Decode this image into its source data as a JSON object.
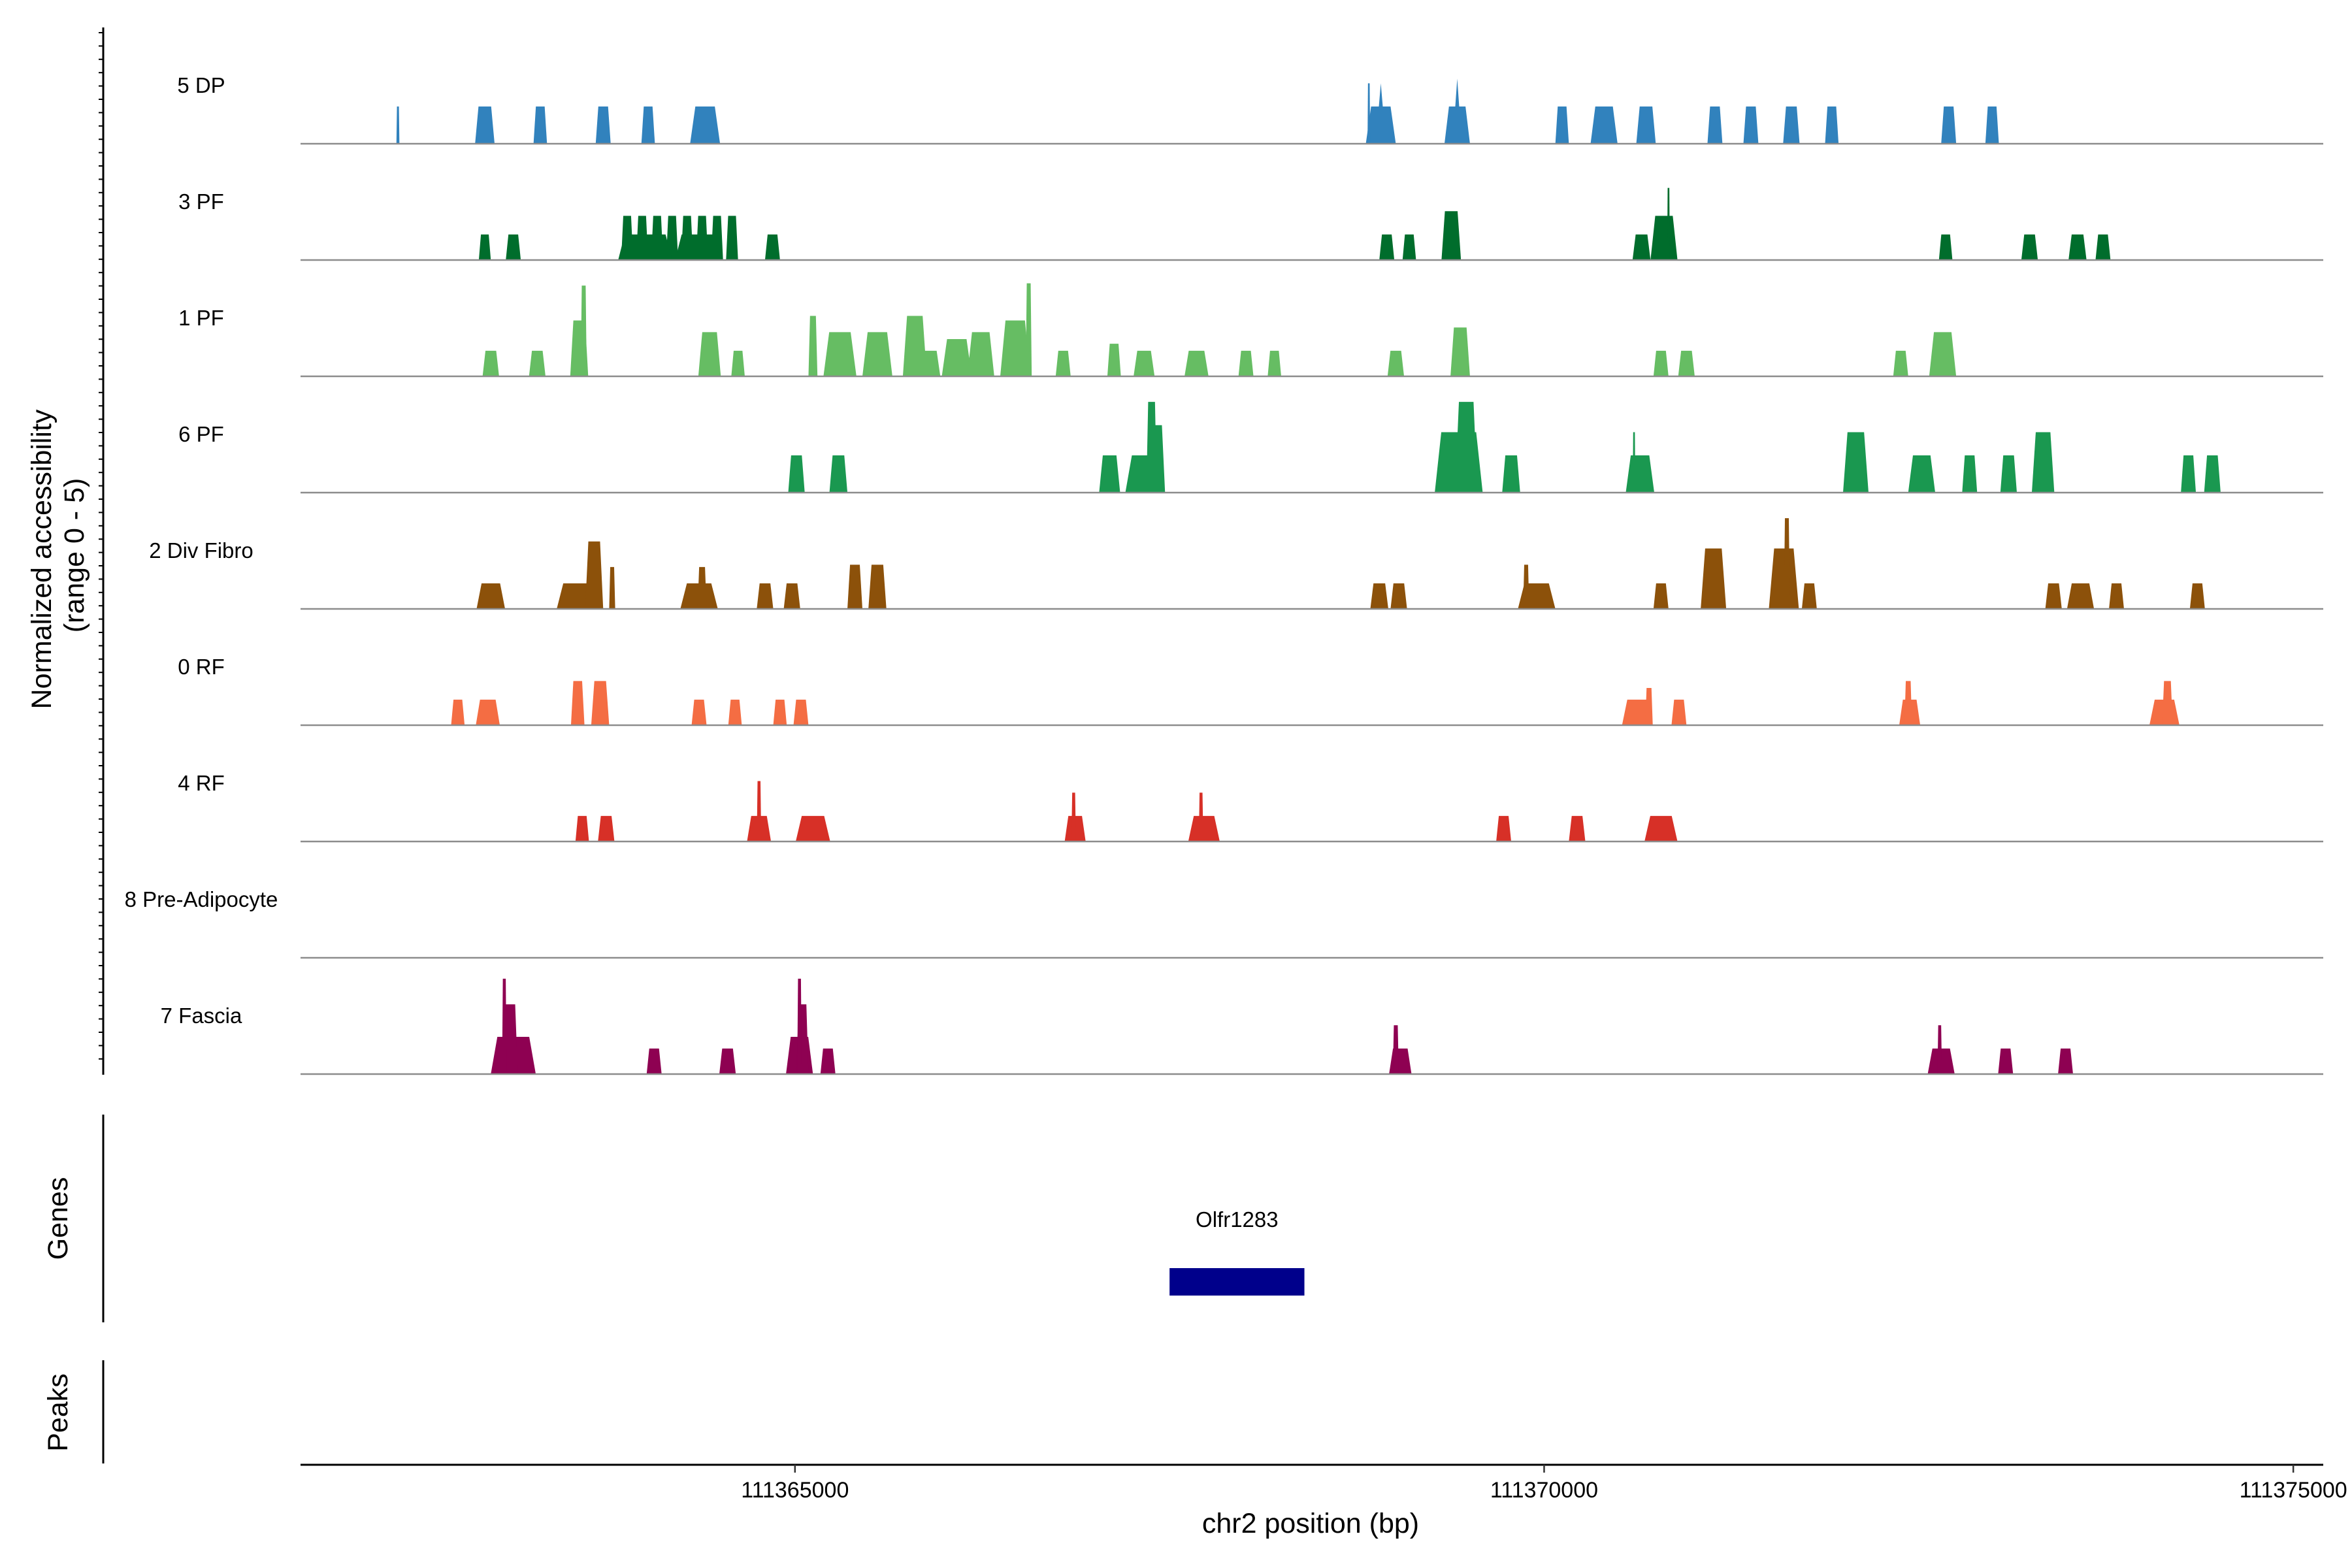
{
  "chart_data": {
    "type": "area",
    "title": "",
    "ylabel": "Normalized accessibility\n(range 0 - 5)",
    "xlabel": "chr2 position (bp)",
    "xlim": [
      111361700,
      111375200
    ],
    "ylim": [
      0,
      5
    ],
    "x_ticks": [
      111365000,
      111370000,
      111375000
    ],
    "x_tick_labels": [
      "111365000",
      "111370000",
      "111375000"
    ],
    "tracks": [
      {
        "name": "5 DP",
        "color": "#3182bd",
        "peaks": [
          [
            111362350,
            20,
            1.6
          ],
          [
            111362930,
            130,
            1.6
          ],
          [
            111363300,
            90,
            1.6
          ],
          [
            111363720,
            100,
            1.6
          ],
          [
            111364020,
            90,
            1.6
          ],
          [
            111364400,
            200,
            1.6
          ],
          [
            111368910,
            200,
            1.6,
            2.6
          ],
          [
            111368830,
            10,
            2.6
          ],
          [
            111370120,
            90,
            1.6
          ],
          [
            111370400,
            180,
            1.6
          ],
          [
            111370680,
            130,
            1.6
          ],
          [
            111371140,
            100,
            1.6
          ],
          [
            111371380,
            100,
            1.6
          ],
          [
            111371650,
            110,
            1.6
          ],
          [
            111371920,
            90,
            1.6
          ],
          [
            111372700,
            100,
            1.6
          ],
          [
            111372990,
            90,
            1.6
          ],
          [
            111369420,
            170,
            1.6,
            2.8
          ]
        ]
      },
      {
        "name": "3 PF",
        "color": "#006d2c",
        "peaks": [
          [
            111362930,
            80,
            1.1
          ],
          [
            111363120,
            100,
            1.1
          ],
          [
            111363880,
            80,
            1.9
          ],
          [
            111363980,
            80,
            1.9
          ],
          [
            111364080,
            80,
            1.9
          ],
          [
            111364180,
            80,
            1.9
          ],
          [
            111364280,
            80,
            1.9
          ],
          [
            111364380,
            80,
            1.9
          ],
          [
            111364480,
            80,
            1.9
          ],
          [
            111364580,
            80,
            1.9
          ],
          [
            111364000,
            360,
            1.1
          ],
          [
            111364350,
            300,
            1.1
          ],
          [
            111364850,
            100,
            1.1
          ],
          [
            111368950,
            100,
            1.1
          ],
          [
            111369100,
            90,
            1.1
          ],
          [
            111369380,
            130,
            2.1
          ],
          [
            111370650,
            120,
            1.1
          ],
          [
            111370800,
            180,
            1.9
          ],
          [
            111370830,
            10,
            3.1
          ],
          [
            111372680,
            90,
            1.1
          ],
          [
            111373240,
            110,
            1.1
          ],
          [
            111373560,
            120,
            1.1
          ],
          [
            111373730,
            100,
            1.1
          ]
        ]
      },
      {
        "name": "1 PF",
        "color": "#66bd63",
        "peaks": [
          [
            111362970,
            110,
            1.1
          ],
          [
            111363280,
            110,
            1.1
          ],
          [
            111363560,
            120,
            2.4
          ],
          [
            111363590,
            40,
            3.9
          ],
          [
            111364430,
            150,
            1.9
          ],
          [
            111364620,
            90,
            1.1
          ],
          [
            111365300,
            220,
            1.9
          ],
          [
            111365550,
            200,
            1.9
          ],
          [
            111365120,
            60,
            2.6
          ],
          [
            111365800,
            160,
            2.6
          ],
          [
            111365900,
            140,
            1.1
          ],
          [
            111366080,
            200,
            1.6
          ],
          [
            111366240,
            180,
            1.9
          ],
          [
            111366470,
            200,
            2.4
          ],
          [
            111366560,
            40,
            4.0
          ],
          [
            111366790,
            100,
            1.1
          ],
          [
            111367130,
            90,
            1.4
          ],
          [
            111367330,
            140,
            1.1
          ],
          [
            111367680,
            160,
            1.1
          ],
          [
            111368010,
            100,
            1.1
          ],
          [
            111368200,
            90,
            1.1
          ],
          [
            111369010,
            110,
            1.1
          ],
          [
            111369440,
            130,
            2.1
          ],
          [
            111370780,
            100,
            1.1
          ],
          [
            111370950,
            110,
            1.1
          ],
          [
            111372380,
            100,
            1.1
          ],
          [
            111372660,
            180,
            1.9
          ]
        ]
      },
      {
        "name": "6 PF",
        "color": "#1a9850",
        "peaks": [
          [
            111365010,
            110,
            1.6
          ],
          [
            111365290,
            120,
            1.6
          ],
          [
            111367100,
            140,
            1.6
          ],
          [
            111367330,
            250,
            1.6
          ],
          [
            111367410,
            120,
            2.9
          ],
          [
            111367380,
            70,
            3.9
          ],
          [
            111369430,
            320,
            2.6
          ],
          [
            111369480,
            150,
            3.9
          ],
          [
            111369780,
            120,
            1.6
          ],
          [
            111370640,
            190,
            1.6
          ],
          [
            111370600,
            10,
            2.6
          ],
          [
            111372080,
            170,
            2.6
          ],
          [
            111372520,
            180,
            1.6
          ],
          [
            111372840,
            100,
            1.6
          ],
          [
            111373100,
            110,
            1.6
          ],
          [
            111373330,
            150,
            2.6
          ],
          [
            111374300,
            100,
            1.6
          ],
          [
            111374460,
            110,
            1.6
          ]
        ]
      },
      {
        "name": "2 Div Fibro",
        "color": "#8c510a",
        "peaks": [
          [
            111362970,
            190,
            1.1
          ],
          [
            111363540,
            260,
            1.1
          ],
          [
            111363660,
            120,
            2.9
          ],
          [
            111363780,
            40,
            1.8
          ],
          [
            111364360,
            250,
            1.1
          ],
          [
            111364380,
            60,
            1.8
          ],
          [
            111364800,
            110,
            1.1
          ],
          [
            111364980,
            110,
            1.1
          ],
          [
            111365400,
            100,
            1.9
          ],
          [
            111365550,
            120,
            1.9
          ],
          [
            111368900,
            120,
            1.1
          ],
          [
            111369030,
            110,
            1.1
          ],
          [
            111369950,
            250,
            1.1
          ],
          [
            111369880,
            40,
            1.9
          ],
          [
            111370780,
            100,
            1.1
          ],
          [
            111371130,
            170,
            2.6
          ],
          [
            111371600,
            200,
            2.6
          ],
          [
            111371620,
            40,
            3.9
          ],
          [
            111371770,
            100,
            1.1
          ],
          [
            111373400,
            110,
            1.1
          ],
          [
            111373580,
            180,
            1.1
          ],
          [
            111373820,
            100,
            1.1
          ],
          [
            111374360,
            100,
            1.1
          ]
        ]
      },
      {
        "name": "0 RF",
        "color": "#f46d43",
        "peaks": [
          [
            111362750,
            90,
            1.1
          ],
          [
            111362950,
            160,
            1.1
          ],
          [
            111363550,
            90,
            1.9
          ],
          [
            111363700,
            120,
            1.9
          ],
          [
            111364360,
            100,
            1.1
          ],
          [
            111364600,
            90,
            1.1
          ],
          [
            111364900,
            90,
            1.1
          ],
          [
            111365040,
            100,
            1.1
          ],
          [
            111370620,
            200,
            1.1
          ],
          [
            111370700,
            50,
            1.6
          ],
          [
            111370900,
            100,
            1.1
          ],
          [
            111372440,
            140,
            1.1
          ],
          [
            111372430,
            50,
            1.9
          ],
          [
            111374140,
            200,
            1.1
          ],
          [
            111374160,
            70,
            1.9
          ]
        ]
      },
      {
        "name": "4 RF",
        "color": "#d73027",
        "peaks": [
          [
            111363580,
            90,
            1.1
          ],
          [
            111363740,
            110,
            1.1
          ],
          [
            111364760,
            160,
            1.1
          ],
          [
            111364760,
            30,
            2.6
          ],
          [
            111365120,
            230,
            1.1
          ],
          [
            111366870,
            140,
            1.1
          ],
          [
            111366860,
            30,
            2.1
          ],
          [
            111367730,
            210,
            1.1
          ],
          [
            111367710,
            30,
            2.1
          ],
          [
            111369730,
            100,
            1.1
          ],
          [
            111370220,
            110,
            1.1
          ],
          [
            111370780,
            220,
            1.1
          ]
        ]
      },
      {
        "name": "8 Pre-Adipocyte",
        "color": "#7b3294",
        "peaks": []
      },
      {
        "name": "7 Fascia",
        "color": "#8e0152",
        "peaks": [
          [
            111363120,
            300,
            1.6
          ],
          [
            111363100,
            100,
            3.0
          ],
          [
            111363060,
            30,
            4.1
          ],
          [
            111364060,
            100,
            1.1
          ],
          [
            111364550,
            110,
            1.1
          ],
          [
            111365030,
            180,
            1.6
          ],
          [
            111365050,
            80,
            3.0
          ],
          [
            111365030,
            30,
            4.1
          ],
          [
            111365220,
            100,
            1.1
          ],
          [
            111369040,
            150,
            1.1
          ],
          [
            111369010,
            40,
            2.1
          ],
          [
            111372650,
            180,
            1.1
          ],
          [
            111372640,
            30,
            2.1
          ],
          [
            111373080,
            100,
            1.1
          ],
          [
            111373480,
            100,
            1.1
          ]
        ]
      }
    ],
    "genes": [
      {
        "name": "Olfr1283",
        "start": 111367500,
        "end": 111368400,
        "color": "#00008b"
      }
    ],
    "peaks_track": [],
    "panel_labels": {
      "genes": "Genes",
      "peaks": "Peaks"
    }
  }
}
